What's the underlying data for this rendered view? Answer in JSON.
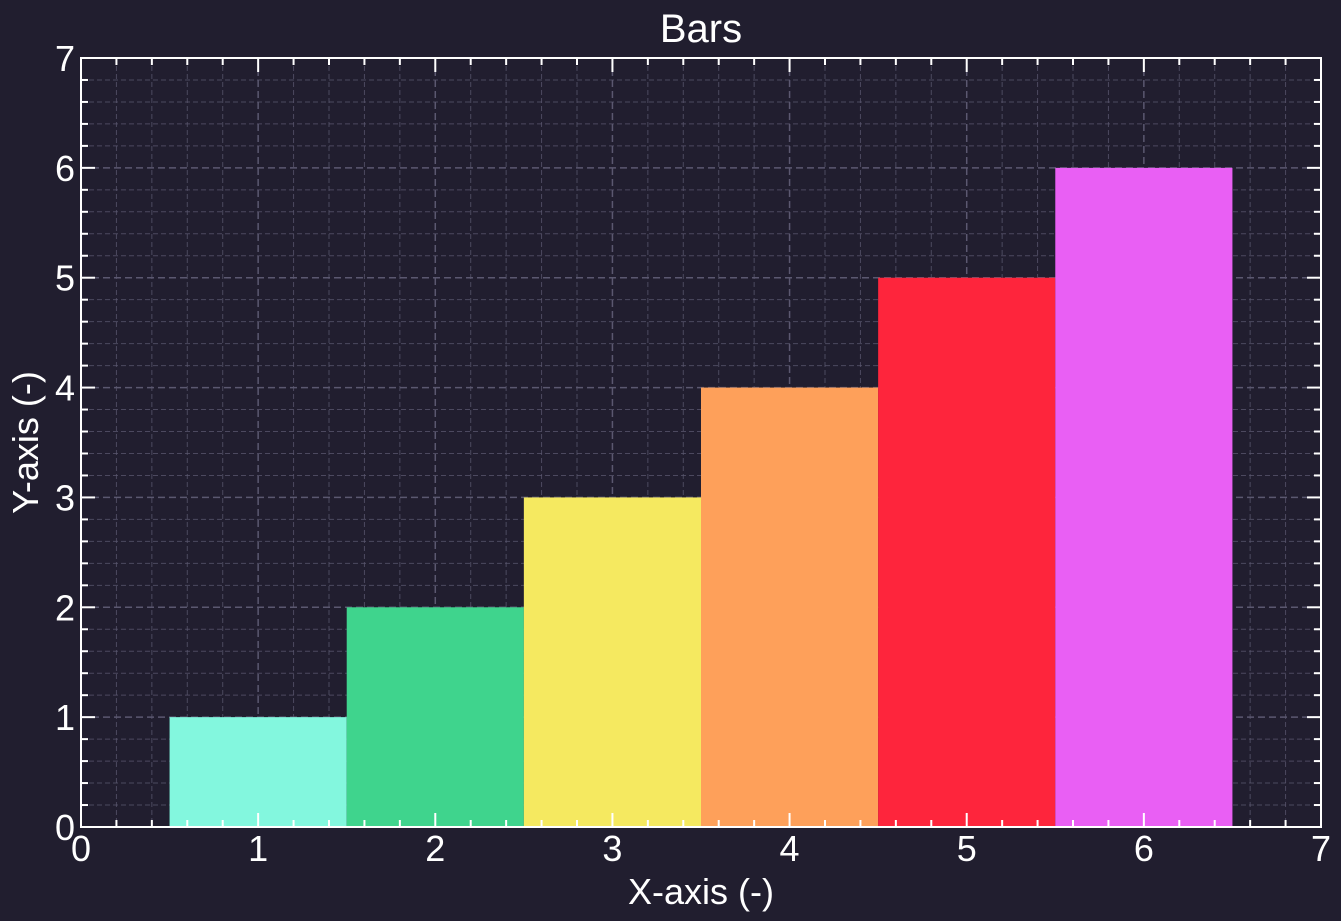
{
  "chart_data": {
    "type": "bar",
    "title": "Bars",
    "xlabel": "X-axis (-)",
    "ylabel": "Y-axis (-)",
    "x": [
      1,
      2,
      3,
      4,
      5,
      6
    ],
    "values": [
      1,
      2,
      3,
      4,
      5,
      6
    ],
    "bar_width": 1.0,
    "bar_colors": [
      "#83f7de",
      "#3fd48d",
      "#f5e960",
      "#fea05a",
      "#fe253c",
      "#e95ff4"
    ],
    "xlim": [
      0,
      7
    ],
    "ylim": [
      0,
      7
    ],
    "xticks": [
      "0",
      "1",
      "2",
      "3",
      "4",
      "5",
      "6",
      "7"
    ],
    "yticks": [
      "0",
      "1",
      "2",
      "3",
      "4",
      "5",
      "6",
      "7"
    ],
    "grid": true,
    "minor_grid": true,
    "legend": false,
    "colors": {
      "background": "#211e2f",
      "grid": "#5b5870",
      "axes": "#ffffff",
      "text": "#ffffff"
    }
  }
}
